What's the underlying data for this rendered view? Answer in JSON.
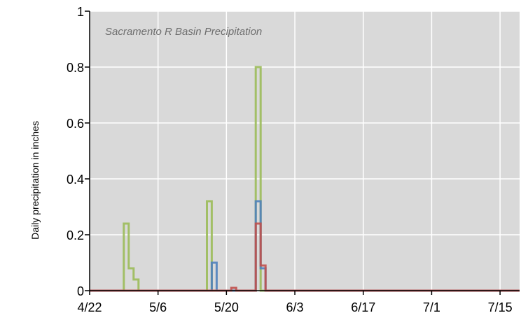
{
  "chart_data": {
    "type": "line",
    "title": "Sacramento R Basin Precipitation",
    "xlabel": "",
    "ylabel": "Daily precipitation in inches",
    "x_tick_labels": [
      "4/22",
      "5/6",
      "5/20",
      "6/3",
      "6/17",
      "7/1",
      "7/15"
    ],
    "x_ticks": [
      "4/22",
      "5/6",
      "5/20",
      "6/3",
      "6/17",
      "7/1",
      "7/15"
    ],
    "y_tick_labels": [
      "0",
      "0.2",
      "0.4",
      "0.6",
      "0.8",
      "1"
    ],
    "xlim": [
      "4/22",
      "7/19"
    ],
    "ylim": [
      0,
      1
    ],
    "grid": true,
    "plot_background": "#d9d9d9",
    "grid_color": "#ffffff",
    "series": [
      {
        "color": "#9bbb59",
        "points": [
          [
            "4/22",
            0
          ],
          [
            "4/29",
            0
          ],
          [
            "4/29",
            0.24
          ],
          [
            "4/30",
            0.24
          ],
          [
            "4/30",
            0.08
          ],
          [
            "5/1",
            0.08
          ],
          [
            "5/1",
            0.04
          ],
          [
            "5/2",
            0.04
          ],
          [
            "5/2",
            0
          ],
          [
            "5/16",
            0
          ],
          [
            "5/16",
            0.32
          ],
          [
            "5/17",
            0.32
          ],
          [
            "5/17",
            0
          ],
          [
            "5/26",
            0
          ],
          [
            "5/26",
            0.8
          ],
          [
            "5/27",
            0.8
          ],
          [
            "5/27",
            0
          ],
          [
            "7/19",
            0
          ]
        ]
      },
      {
        "color": "#4f81bd",
        "points": [
          [
            "4/22",
            0
          ],
          [
            "5/17",
            0
          ],
          [
            "5/17",
            0.1
          ],
          [
            "5/18",
            0.1
          ],
          [
            "5/18",
            0
          ],
          [
            "5/26",
            0
          ],
          [
            "5/26",
            0.32
          ],
          [
            "5/27",
            0.32
          ],
          [
            "5/27",
            0.08
          ],
          [
            "5/28",
            0.08
          ],
          [
            "5/28",
            0
          ],
          [
            "7/19",
            0
          ]
        ]
      },
      {
        "color": "#c0504d",
        "points": [
          [
            "4/22",
            0
          ],
          [
            "5/21",
            0
          ],
          [
            "5/21",
            0.01
          ],
          [
            "5/22",
            0.01
          ],
          [
            "5/22",
            0
          ],
          [
            "5/26",
            0
          ],
          [
            "5/26",
            0.24
          ],
          [
            "5/27",
            0.24
          ],
          [
            "5/27",
            0.09
          ],
          [
            "5/28",
            0.09
          ],
          [
            "5/28",
            0
          ],
          [
            "7/19",
            0
          ]
        ]
      }
    ]
  }
}
